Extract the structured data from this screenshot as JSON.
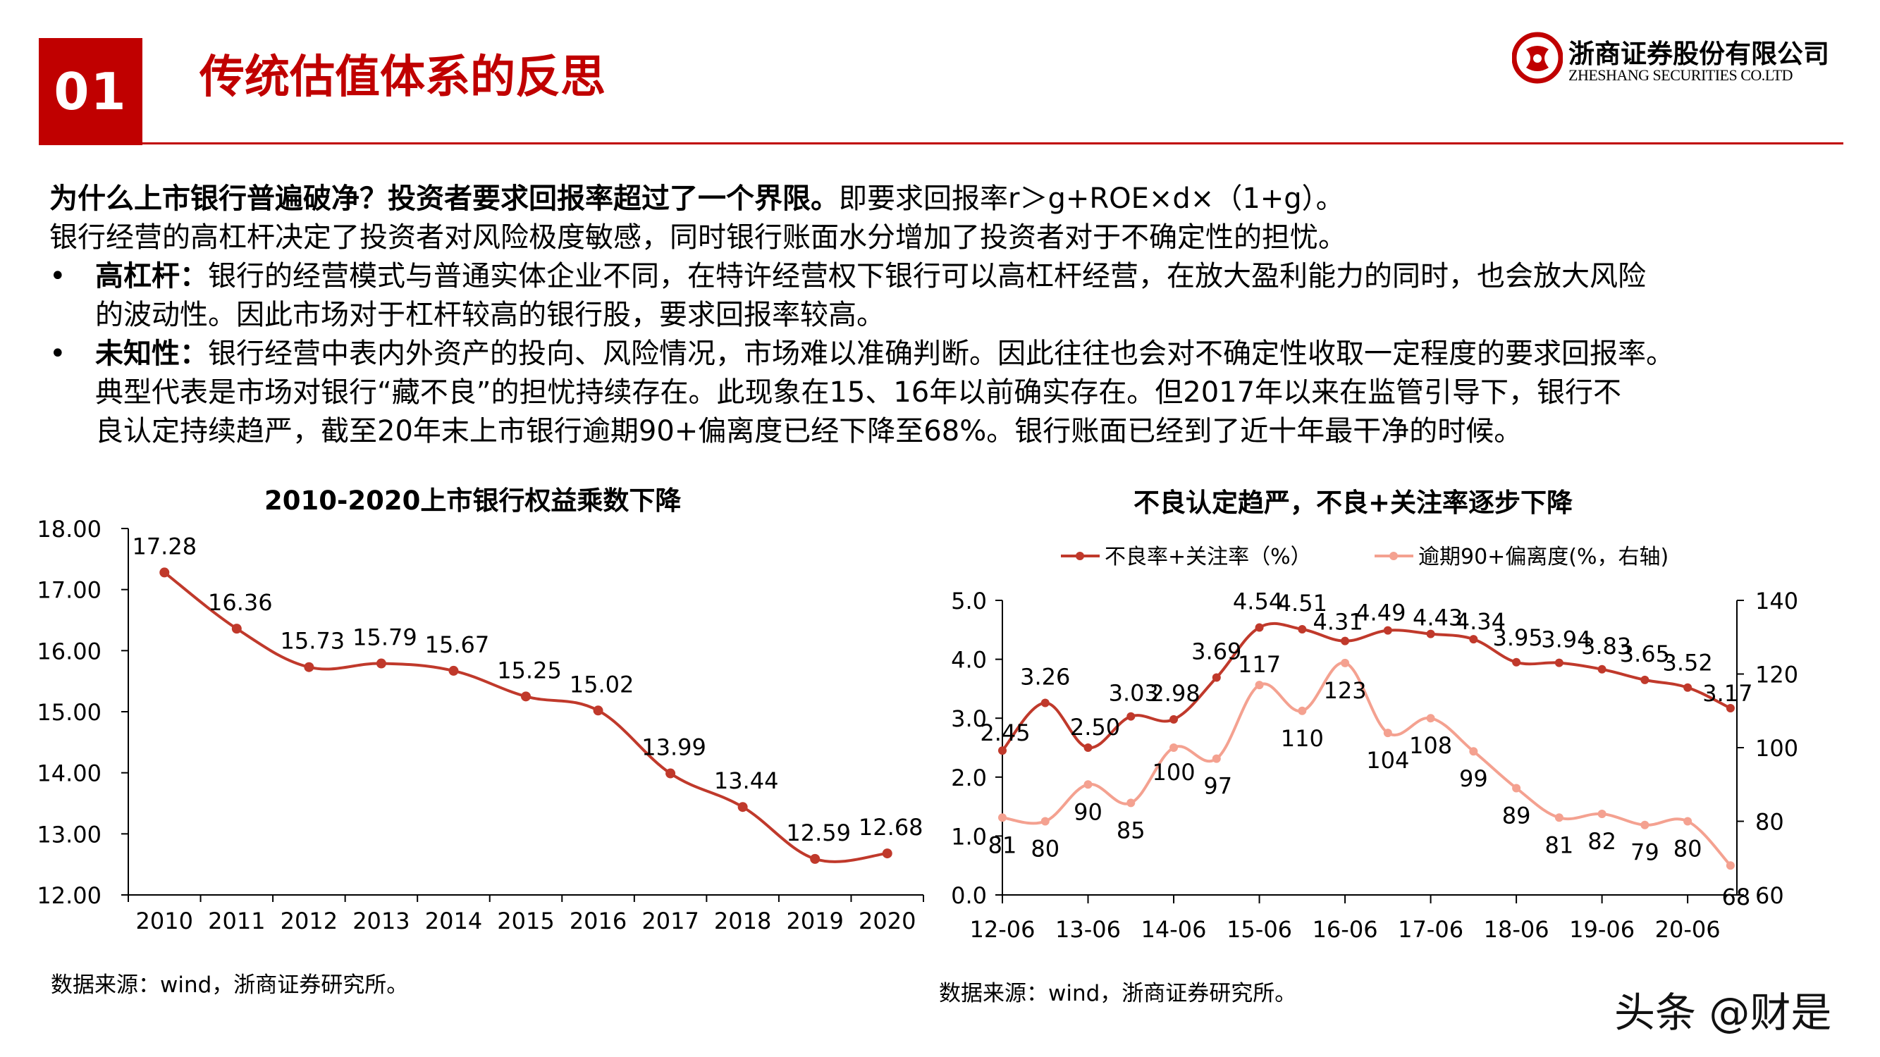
{
  "header": {
    "number": "01",
    "title": "传统估值体系的反思",
    "logo_cn": "浙商证券股份有限公司",
    "logo_en": "ZHESHANG SECURITIES CO.LTD"
  },
  "body_text": {
    "line1_bold": "为什么上市银行普遍破净？投资者要求回报率超过了一个界限。",
    "line1_rest": "即要求回报率r＞g+ROE×d×（1+g）。",
    "line2": "银行经营的高杠杆决定了投资者对风险极度敏感，同时银行账面水分增加了投资者对于不确定性的担忧。",
    "bullet_symbol": "•",
    "b1_bold": "高杠杆：",
    "b1_line1": "银行的经营模式与普通实体企业不同，在特许经营权下银行可以高杠杆经营，在放大盈利能力的同时，也会放大风险",
    "b1_line2": "的波动性。因此市场对于杠杆较高的银行股，要求回报率较高。",
    "b2_bold": "未知性：",
    "b2_line1": "银行经营中表内外资产的投向、风险情况，市场难以准确判断。因此往往也会对不确定性收取一定程度的要求回报率。",
    "b2_line2": "典型代表是市场对银行“藏不良”的担忧持续存在。此现象在15、16年以前确实存在。但2017年以来在监管引导下，银行不",
    "b2_line3": "良认定持续趋严，截至20年末上市银行逾期90+偏离度已经下降至68%。银行账面已经到了近十年最干净的时候。"
  },
  "chart_data": [
    {
      "type": "line",
      "title": "2010-2020上市银行权益乘数下降",
      "categories": [
        "2010",
        "2011",
        "2012",
        "2013",
        "2014",
        "2015",
        "2016",
        "2017",
        "2018",
        "2019",
        "2020"
      ],
      "series": [
        {
          "values": [
            17.28,
            16.36,
            15.73,
            15.79,
            15.67,
            15.25,
            15.02,
            13.99,
            13.44,
            12.59,
            12.68
          ],
          "color": "#c0392b"
        }
      ],
      "y_ticks": [
        "18.00",
        "17.00",
        "16.00",
        "15.00",
        "14.00",
        "13.00",
        "12.00"
      ],
      "ylim": [
        12,
        18
      ],
      "labels": [
        "17.28",
        "16.36",
        "15.73",
        "15.79",
        "15.67",
        "15.25",
        "15.02",
        "13.99",
        "13.44",
        "12.59",
        "12.68"
      ],
      "source": "数据来源：wind，浙商证券研究所。"
    },
    {
      "type": "line",
      "title": "不良认定趋严，不良+关注率逐步下降",
      "x_ticks": [
        "12-06",
        "13-06",
        "14-06",
        "15-06",
        "16-06",
        "17-06",
        "18-06",
        "19-06",
        "20-06"
      ],
      "x": [
        "12-06",
        "12-12",
        "13-06",
        "13-12",
        "14-06",
        "14-12",
        "15-06",
        "15-12",
        "16-06",
        "16-12",
        "17-06",
        "17-12",
        "18-06",
        "18-12",
        "19-06",
        "19-12",
        "20-06",
        "20-12"
      ],
      "series": [
        {
          "name": "不良率+关注率（%）",
          "axis": "left",
          "color": "#c0392b",
          "values": [
            2.45,
            3.26,
            2.5,
            3.03,
            2.98,
            3.69,
            4.54,
            4.51,
            4.31,
            4.49,
            4.43,
            4.34,
            3.95,
            3.94,
            3.83,
            3.65,
            3.52,
            3.17
          ],
          "labels": [
            "2.45",
            "3.26",
            "2.50",
            "3.03",
            "2.98",
            "3.69",
            "4.54",
            "4.51",
            "4.31",
            "4.49",
            "4.43",
            "4.34",
            "3.95",
            "3.94",
            "3.83",
            "3.65",
            "3.52",
            "3.17"
          ]
        },
        {
          "name": "逾期90+偏离度(%，右轴)",
          "axis": "right",
          "color": "#f4a190",
          "values": [
            81,
            80,
            90,
            85,
            100,
            97,
            117,
            110,
            123,
            104,
            108,
            99,
            89,
            81,
            82,
            79,
            80,
            68
          ],
          "labels": [
            "81",
            "80",
            "90",
            "85",
            "100",
            "97",
            "117",
            "110",
            "123",
            "104",
            "108",
            "99",
            "89",
            "81",
            "82",
            "79",
            "80",
            "68"
          ]
        }
      ],
      "y_left_ticks": [
        "5.0",
        "4.0",
        "3.0",
        "2.0",
        "1.0",
        "0.0"
      ],
      "y_right_ticks": [
        "140",
        "120",
        "100",
        "80",
        "60"
      ],
      "ylim_left": [
        0,
        5
      ],
      "ylim_right": [
        60,
        140
      ],
      "legend_position": "top",
      "source": "数据来源：wind，浙商证券研究所。"
    }
  ],
  "watermark": "头条 @财是"
}
